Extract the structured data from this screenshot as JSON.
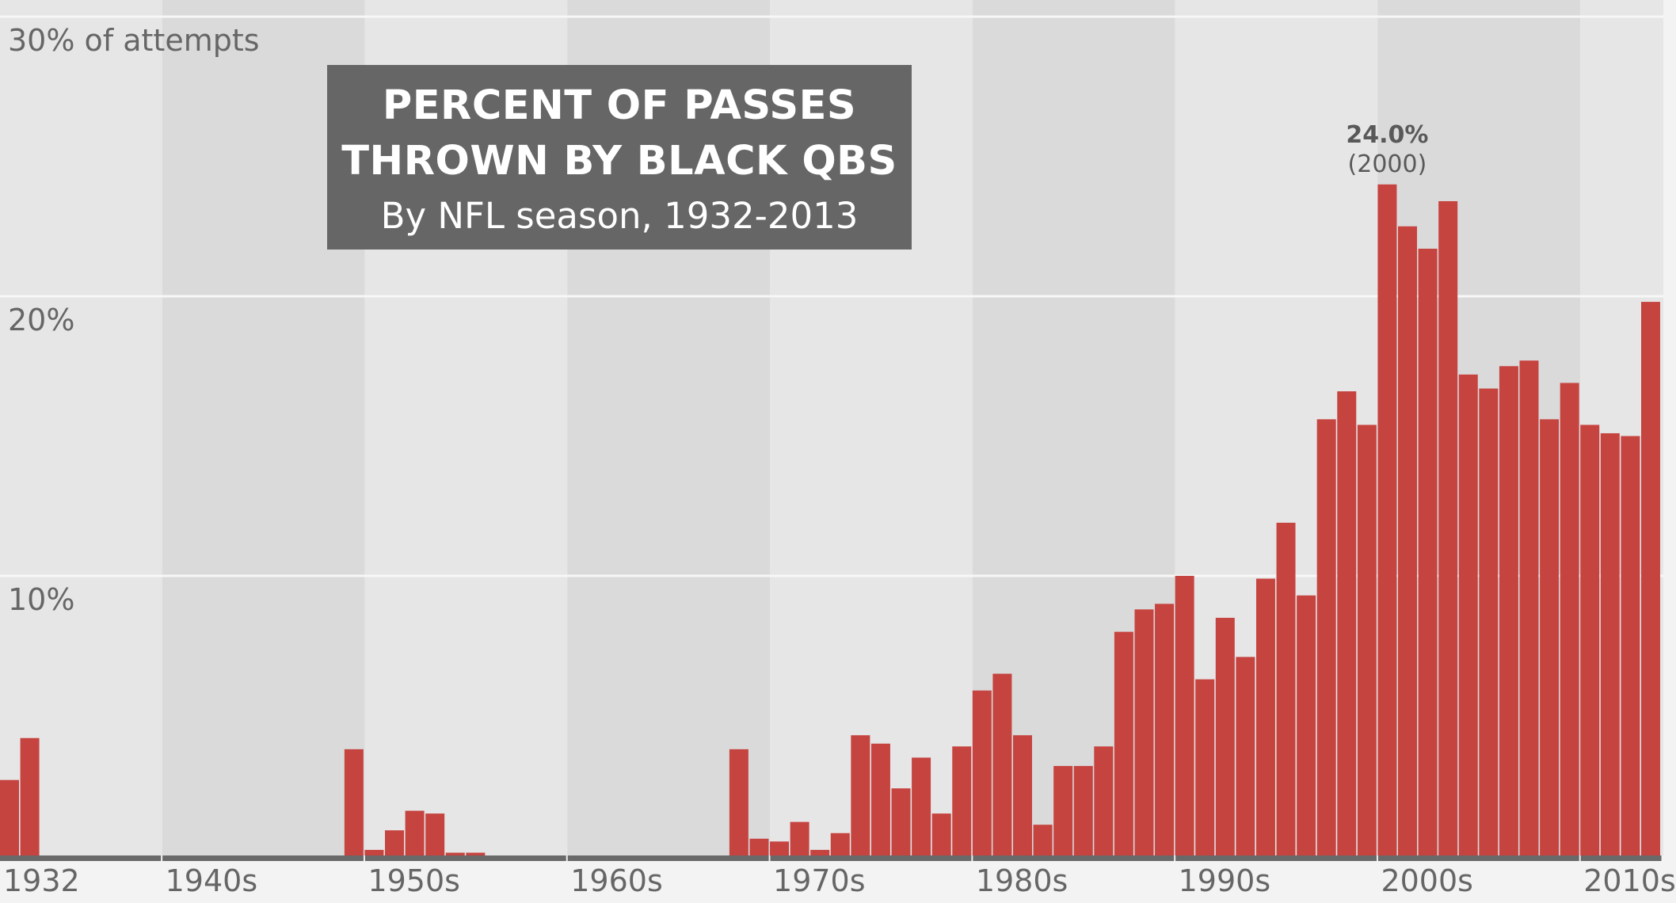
{
  "chart_data": {
    "type": "bar",
    "title_lines": [
      "PERCENT OF PASSES",
      "THROWN BY BLACK QBS"
    ],
    "subtitle": "By NFL season, 1932-2013",
    "ylim": [
      0,
      30
    ],
    "y_ticks": [
      {
        "value": 10,
        "label": "10%"
      },
      {
        "value": 20,
        "label": "20%"
      },
      {
        "value": 30,
        "label": "30% of attempts"
      }
    ],
    "x_ticks": [
      {
        "year": 1932,
        "label": "1932"
      },
      {
        "year": 1940,
        "label": "1940s"
      },
      {
        "year": 1950,
        "label": "1950s"
      },
      {
        "year": 1960,
        "label": "1960s"
      },
      {
        "year": 1970,
        "label": "1970s"
      },
      {
        "year": 1980,
        "label": "1980s"
      },
      {
        "year": 1990,
        "label": "1990s"
      },
      {
        "year": 2000,
        "label": "2000s"
      },
      {
        "year": 2010,
        "label": "2010s"
      }
    ],
    "annotation": {
      "year": 2000,
      "value_label": "24.0%",
      "year_label": "(2000)"
    },
    "grid": true,
    "x": [
      1932,
      1933,
      1934,
      1935,
      1936,
      1937,
      1938,
      1939,
      1940,
      1941,
      1942,
      1943,
      1944,
      1945,
      1946,
      1947,
      1948,
      1949,
      1950,
      1951,
      1952,
      1953,
      1954,
      1955,
      1956,
      1957,
      1958,
      1959,
      1960,
      1961,
      1962,
      1963,
      1964,
      1965,
      1966,
      1967,
      1968,
      1969,
      1970,
      1971,
      1972,
      1973,
      1974,
      1975,
      1976,
      1977,
      1978,
      1979,
      1980,
      1981,
      1982,
      1983,
      1984,
      1985,
      1986,
      1987,
      1988,
      1989,
      1990,
      1991,
      1992,
      1993,
      1994,
      1995,
      1996,
      1997,
      1998,
      1999,
      2000,
      2001,
      2002,
      2003,
      2004,
      2005,
      2006,
      2007,
      2008,
      2009,
      2010,
      2011,
      2012,
      2013
    ],
    "values": [
      2.7,
      4.2,
      0,
      0,
      0,
      0,
      0,
      0,
      0,
      0,
      0,
      0,
      0,
      0,
      0,
      0,
      0,
      3.8,
      0.2,
      0.9,
      1.6,
      1.5,
      0.1,
      0.1,
      0,
      0,
      0,
      0,
      0,
      0,
      0,
      0,
      0,
      0,
      0,
      0,
      3.8,
      0.6,
      0.5,
      1.2,
      0.2,
      0.8,
      4.3,
      4.0,
      2.4,
      3.5,
      1.5,
      3.9,
      5.9,
      6.5,
      4.3,
      1.1,
      3.2,
      3.2,
      3.9,
      8.0,
      8.8,
      9.0,
      10.0,
      6.3,
      8.5,
      7.1,
      9.9,
      11.9,
      9.3,
      15.6,
      16.6,
      15.4,
      24.0,
      22.5,
      21.7,
      23.4,
      17.2,
      16.7,
      17.5,
      17.7,
      15.6,
      16.9,
      15.4,
      15.1,
      15.0,
      19.8
    ]
  },
  "colors": {
    "bar": "#c64440",
    "band_light": "#e6e6e6",
    "band_dark": "#dadada",
    "gridline": "#f7f7f7",
    "baseline": "#696969",
    "title_bg": "#666666",
    "text": "#666666"
  }
}
